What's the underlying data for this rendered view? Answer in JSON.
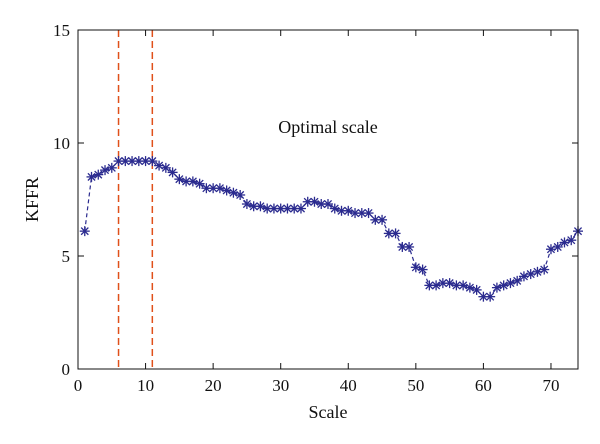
{
  "chart_data": {
    "type": "line",
    "title": "",
    "xlabel": "Scale",
    "ylabel": "KFFR",
    "xlim": [
      0,
      74
    ],
    "ylim": [
      0,
      15
    ],
    "xticks": [
      0,
      10,
      20,
      30,
      40,
      50,
      60,
      70
    ],
    "yticks": [
      0,
      5,
      10,
      15
    ],
    "annotation": "Optimal scale",
    "optimal_scale_lines": [
      6,
      11
    ],
    "colors": {
      "series": "#2b2b8f",
      "marker_lines": "#e0501a"
    },
    "marker": "asterisk",
    "line_style": "dashed",
    "series": [
      {
        "x": [
          1,
          2,
          3,
          4,
          5,
          6,
          7,
          8,
          9,
          10,
          11,
          12,
          13,
          14,
          15,
          16,
          17,
          18,
          19,
          20,
          21,
          22,
          23,
          24,
          25,
          26,
          27,
          28,
          29,
          30,
          31,
          32,
          33,
          34,
          35,
          36,
          37,
          38,
          39,
          40,
          41,
          42,
          43,
          44,
          45,
          46,
          47,
          48,
          49,
          50,
          51,
          52,
          53,
          54,
          55,
          56,
          57,
          58,
          59,
          60,
          61,
          62,
          63,
          64,
          65,
          66,
          67,
          68,
          69,
          70,
          71,
          72,
          73,
          74
        ],
        "y": [
          6.1,
          8.5,
          8.6,
          8.8,
          8.9,
          9.2,
          9.2,
          9.2,
          9.2,
          9.2,
          9.2,
          9.0,
          8.9,
          8.7,
          8.4,
          8.3,
          8.3,
          8.2,
          8.0,
          8.0,
          8.0,
          7.9,
          7.8,
          7.7,
          7.3,
          7.2,
          7.2,
          7.1,
          7.1,
          7.1,
          7.1,
          7.1,
          7.1,
          7.4,
          7.4,
          7.3,
          7.3,
          7.1,
          7.0,
          7.0,
          6.9,
          6.9,
          6.9,
          6.6,
          6.6,
          6.0,
          6.0,
          5.4,
          5.4,
          4.5,
          4.4,
          3.7,
          3.7,
          3.8,
          3.8,
          3.7,
          3.7,
          3.6,
          3.5,
          3.2,
          3.2,
          3.6,
          3.7,
          3.8,
          3.9,
          4.1,
          4.2,
          4.3,
          4.4,
          5.3,
          5.4,
          5.6,
          5.7,
          6.1
        ]
      }
    ]
  }
}
